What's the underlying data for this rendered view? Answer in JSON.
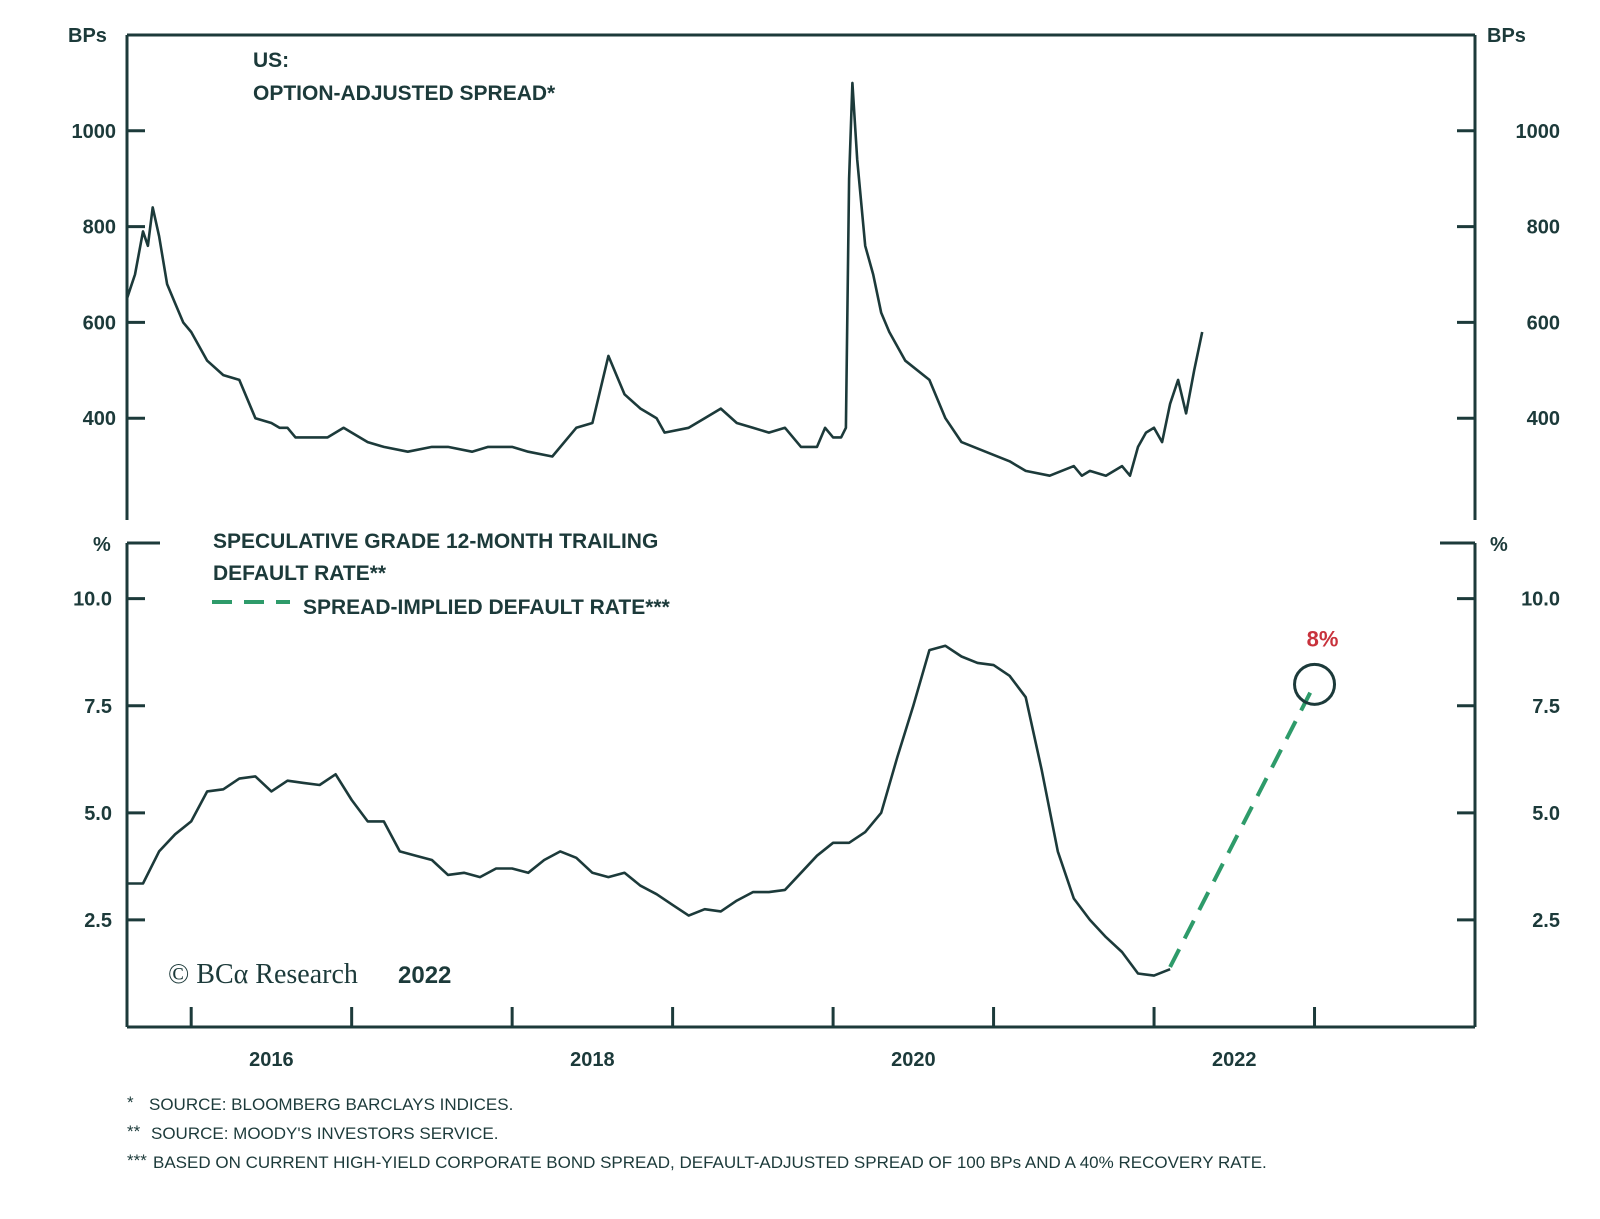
{
  "chart_data": [
    {
      "type": "line",
      "title": "US:",
      "subtitle": "OPTION-ADJUSTED SPREAD*",
      "ylabel_left": "BPs",
      "ylabel_right": "BPs",
      "ylim": [
        200,
        1200
      ],
      "yticks": [
        "400",
        "600",
        "800",
        "1000"
      ],
      "grid": false,
      "series": [
        {
          "x": [
            2015.6,
            2015.65,
            2015.7,
            2015.73,
            2015.76,
            2015.8,
            2015.85,
            2015.9,
            2015.95,
            2016.0,
            2016.1,
            2016.2,
            2016.3,
            2016.4,
            2016.5,
            2016.55,
            2016.6,
            2016.65,
            2016.75,
            2016.85,
            2016.95,
            2017.0,
            2017.1,
            2017.2,
            2017.35,
            2017.5,
            2017.6,
            2017.75,
            2017.85,
            2018.0,
            2018.1,
            2018.25,
            2018.4,
            2018.5,
            2018.6,
            2018.7,
            2018.8,
            2018.85,
            2018.9,
            2018.95,
            2019.1,
            2019.2,
            2019.3,
            2019.4,
            2019.5,
            2019.6,
            2019.7,
            2019.8,
            2019.9,
            2019.95,
            2020.0,
            2020.05,
            2020.08,
            2020.1,
            2020.12,
            2020.15,
            2020.2,
            2020.25,
            2020.3,
            2020.35,
            2020.45,
            2020.6,
            2020.7,
            2020.8,
            2020.95,
            2021.1,
            2021.2,
            2021.35,
            2021.5,
            2021.55,
            2021.6,
            2021.7,
            2021.8,
            2021.85,
            2021.9,
            2021.95,
            2022.0,
            2022.05,
            2022.1,
            2022.15,
            2022.2,
            2022.25,
            2022.3
          ],
          "values": [
            650,
            700,
            790,
            760,
            840,
            780,
            680,
            640,
            600,
            580,
            520,
            490,
            480,
            400,
            390,
            380,
            380,
            360,
            360,
            360,
            380,
            370,
            350,
            340,
            330,
            340,
            340,
            330,
            340,
            340,
            330,
            320,
            380,
            390,
            530,
            450,
            420,
            410,
            400,
            370,
            380,
            400,
            420,
            390,
            380,
            370,
            380,
            340,
            340,
            380,
            360,
            360,
            380,
            900,
            1100,
            940,
            760,
            700,
            620,
            580,
            520,
            480,
            400,
            350,
            330,
            310,
            290,
            280,
            300,
            280,
            290,
            280,
            300,
            280,
            340,
            370,
            380,
            350,
            430,
            480,
            410,
            500,
            580
          ]
        }
      ]
    },
    {
      "type": "line",
      "ylabel_left": "%",
      "ylabel_right": "%",
      "ylim": [
        0,
        11.3
      ],
      "yticks": [
        "2.5",
        "5.0",
        "7.5",
        "10.0"
      ],
      "xticks": [
        "2016",
        "2018",
        "2020",
        "2022"
      ],
      "grid": false,
      "series": [
        {
          "name": "SPECULATIVE GRADE 12-MONTH TRAILING DEFAULT RATE**",
          "style": "solid",
          "color": "#1c3a3a",
          "x": [
            2015.6,
            2015.7,
            2015.8,
            2015.9,
            2016.0,
            2016.1,
            2016.2,
            2016.3,
            2016.4,
            2016.5,
            2016.6,
            2016.7,
            2016.8,
            2016.9,
            2017.0,
            2017.1,
            2017.2,
            2017.3,
            2017.4,
            2017.5,
            2017.6,
            2017.7,
            2017.8,
            2017.9,
            2018.0,
            2018.1,
            2018.2,
            2018.3,
            2018.4,
            2018.5,
            2018.6,
            2018.7,
            2018.8,
            2018.9,
            2019.0,
            2019.1,
            2019.2,
            2019.3,
            2019.4,
            2019.5,
            2019.6,
            2019.7,
            2019.8,
            2019.9,
            2020.0,
            2020.1,
            2020.2,
            2020.3,
            2020.4,
            2020.5,
            2020.6,
            2020.7,
            2020.8,
            2020.9,
            2021.0,
            2021.1,
            2021.2,
            2021.3,
            2021.4,
            2021.5,
            2021.6,
            2021.7,
            2021.8,
            2021.9,
            2022.0,
            2022.1
          ],
          "values": [
            3.35,
            3.35,
            4.1,
            4.5,
            4.8,
            5.5,
            5.55,
            5.8,
            5.85,
            5.5,
            5.75,
            5.7,
            5.65,
            5.9,
            5.3,
            4.8,
            4.8,
            4.1,
            4.0,
            3.9,
            3.55,
            3.6,
            3.5,
            3.7,
            3.7,
            3.6,
            3.9,
            4.1,
            3.95,
            3.6,
            3.5,
            3.6,
            3.3,
            3.1,
            2.85,
            2.6,
            2.75,
            2.7,
            2.95,
            3.15,
            3.15,
            3.2,
            3.6,
            4.0,
            4.3,
            4.3,
            4.55,
            5.0,
            6.3,
            7.5,
            8.8,
            8.9,
            8.65,
            8.5,
            8.45,
            8.2,
            7.7,
            6.0,
            4.1,
            3.0,
            2.5,
            2.1,
            1.75,
            1.25,
            1.2,
            1.35
          ]
        },
        {
          "name": "SPREAD-IMPLIED DEFAULT RATE***",
          "style": "dashed",
          "color": "#2e9b6a",
          "x": [
            2022.1,
            2023.0
          ],
          "values": [
            1.4,
            8.0
          ]
        }
      ],
      "annotation": {
        "label": "8%",
        "x": 2023.0,
        "value": 8.0,
        "color": "#c8323c"
      }
    }
  ],
  "xaxis": {
    "min": 2015.6,
    "max": 2024.0
  },
  "legend": {
    "solid_line1": "SPECULATIVE GRADE 12-MONTH TRAILING",
    "solid_line2": "DEFAULT RATE**",
    "dashed": "SPREAD-IMPLIED DEFAULT RATE***"
  },
  "copyright": {
    "text": "© BCα Research",
    "year": "2022"
  },
  "footnotes": [
    {
      "mark": "*",
      "text": "SOURCE: BLOOMBERG BARCLAYS INDICES."
    },
    {
      "mark": "**",
      "text": "SOURCE: MOODY'S INVESTORS SERVICE."
    },
    {
      "mark": "***",
      "text": "BASED ON CURRENT HIGH-YIELD CORPORATE BOND SPREAD, DEFAULT-ADJUSTED SPREAD OF 100 BPs AND A 40% RECOVERY RATE."
    }
  ],
  "colors": {
    "ink": "#1c3a3a",
    "dashed": "#2e9b6a",
    "accent": "#c8323c"
  }
}
